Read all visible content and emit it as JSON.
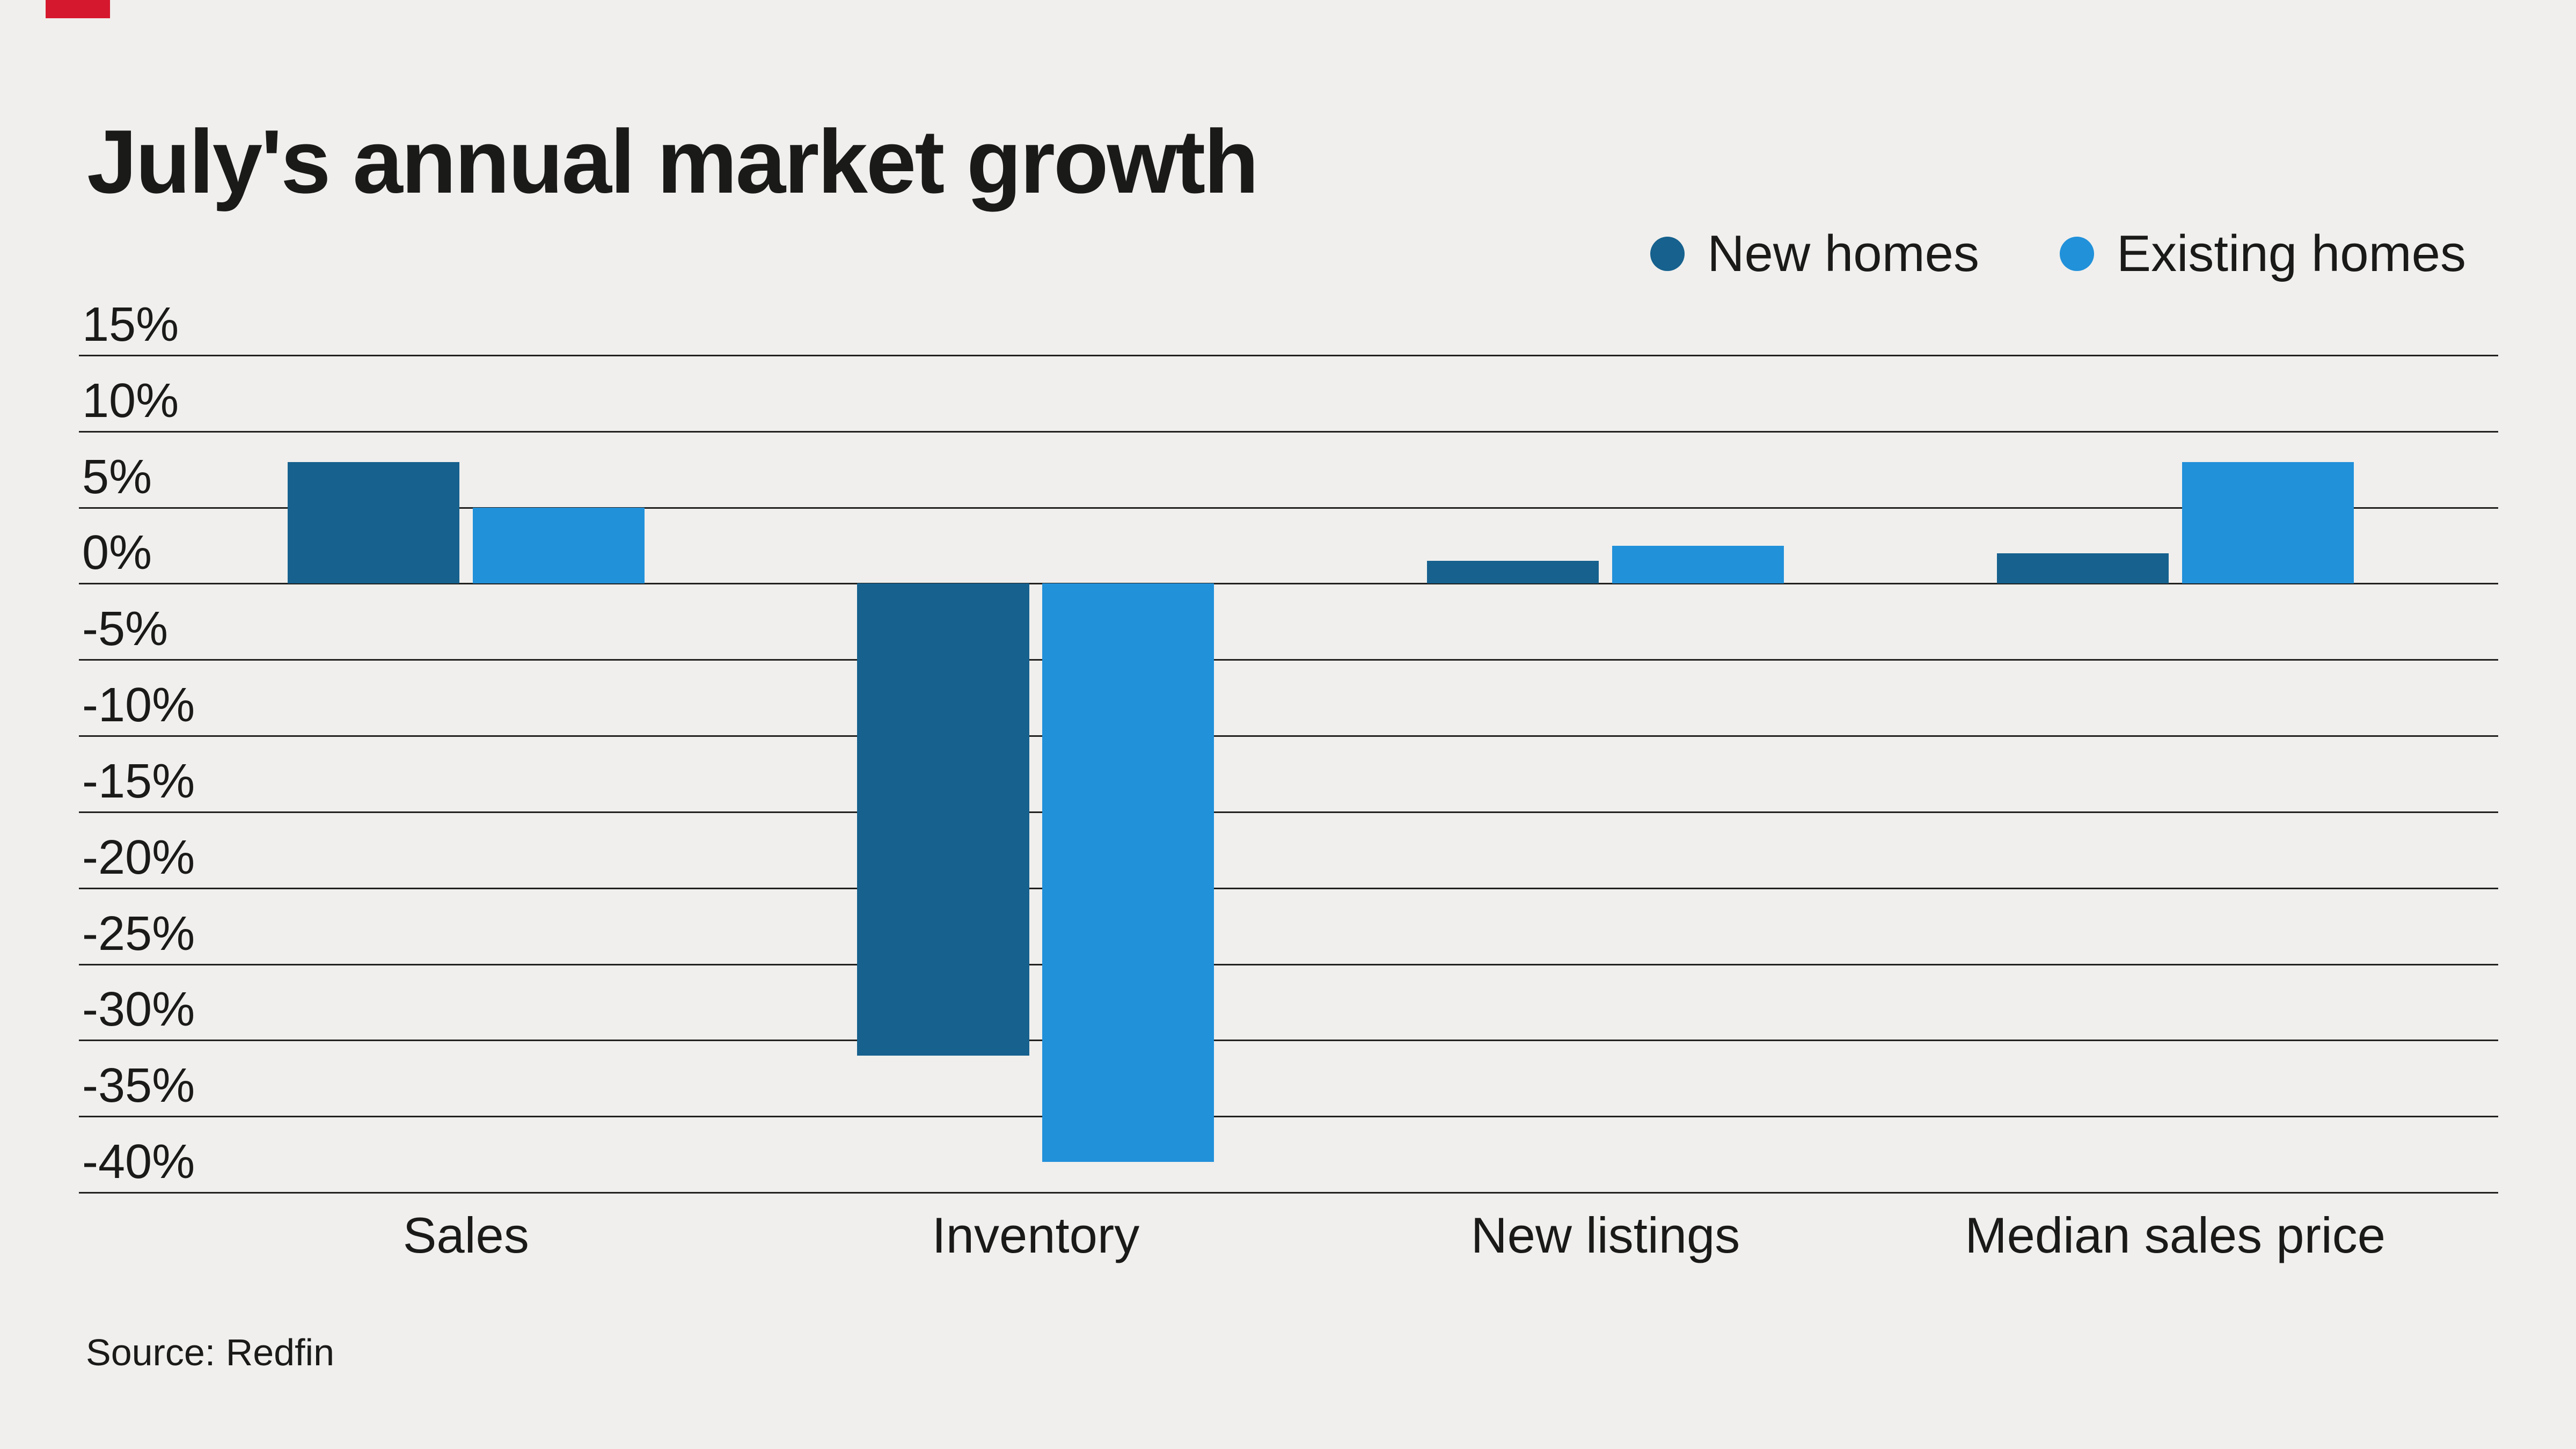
{
  "title": "July's annual market growth",
  "source": "Source: Redfin",
  "accent_color": "#d6182e",
  "background_color": "#f0efed",
  "legend": [
    {
      "label": "New homes",
      "color": "#16618e"
    },
    {
      "label": "Existing homes",
      "color": "#2191da"
    }
  ],
  "chart_data": {
    "type": "bar",
    "title": "July's annual market growth",
    "categories": [
      "Sales",
      "Inventory",
      "New listings",
      "Median sales price"
    ],
    "series": [
      {
        "name": "New homes",
        "color": "#16618e",
        "values": [
          8,
          -31,
          1.5,
          2
        ]
      },
      {
        "name": "Existing homes",
        "color": "#2191da",
        "values": [
          5,
          -38,
          2.5,
          8
        ]
      }
    ],
    "yticks": [
      15,
      10,
      5,
      0,
      -5,
      -10,
      -15,
      -20,
      -25,
      -30,
      -35,
      -40
    ],
    "ylim": [
      -40,
      15
    ],
    "ytick_format": "{v}%",
    "xlabel": "",
    "ylabel": "",
    "grid": true,
    "legend_position": "top-right",
    "source": "Source: Redfin"
  }
}
